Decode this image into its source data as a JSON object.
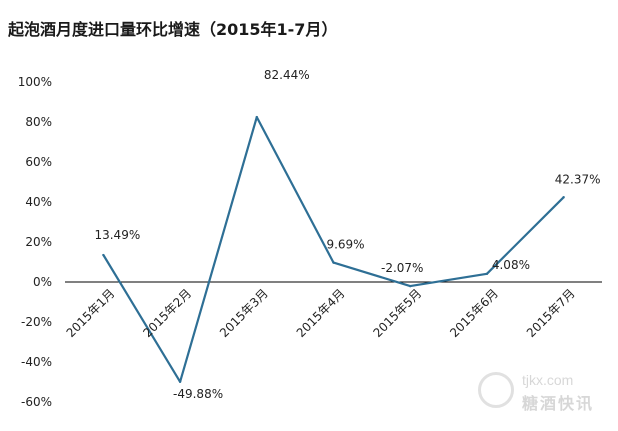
{
  "title": "起泡酒月度进口量环比增速（2015年1-7月）",
  "watermark": {
    "site": "tjkx.com",
    "name": "糖酒快讯"
  },
  "colors": {
    "line": "#2e6f95",
    "axis": "#000000",
    "text": "#222222"
  },
  "chart_data": {
    "type": "line",
    "title": "起泡酒月度进口量环比增速（2015年1-7月）",
    "categories": [
      "2015年1月",
      "2015年2月",
      "2015年3月",
      "2015年4月",
      "2015年5月",
      "2015年6月",
      "2015年7月"
    ],
    "series": [
      {
        "values": [
          13.49,
          -49.88,
          82.44,
          9.69,
          -2.07,
          4.08,
          42.37
        ]
      }
    ],
    "data_labels": [
      "13.49%",
      "-49.88%",
      "82.44%",
      "9.69%",
      "-2.07%",
      "4.08%",
      "42.37%"
    ],
    "ylim": [
      -60,
      100
    ],
    "yticks": [
      "100%",
      "80%",
      "60%",
      "40%",
      "20%",
      "0%",
      "-20%",
      "-40%",
      "-60%"
    ],
    "ytick_values": [
      100,
      80,
      60,
      40,
      20,
      0,
      -20,
      -40,
      -60
    ],
    "xlabel": "",
    "ylabel": "",
    "grid": false,
    "legend": "none"
  }
}
